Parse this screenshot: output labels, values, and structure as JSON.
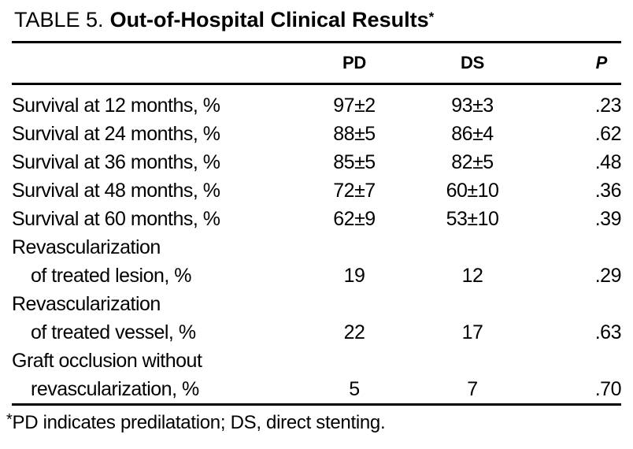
{
  "header": {
    "label": "TABLE 5.",
    "title": "Out-of-Hospital Clinical Results",
    "marker": "*"
  },
  "table": {
    "columns": {
      "label": "",
      "pd": "PD",
      "ds": "DS",
      "p": "P"
    },
    "rows": [
      {
        "label": "Survival at 12 months, %",
        "pd": "97±2",
        "ds": "93±3",
        "p": ".23"
      },
      {
        "label": "Survival at 24 months, %",
        "pd": "88±5",
        "ds": "86±4",
        "p": ".62"
      },
      {
        "label": "Survival at 36 months, %",
        "pd": "85±5",
        "ds": "82±5",
        "p": ".48"
      },
      {
        "label": "Survival at 48 months, %",
        "pd": "72±7",
        "ds": "60±10",
        "p": ".36"
      },
      {
        "label": "Survival at 60 months, %",
        "pd": "62±9",
        "ds": "53±10",
        "p": ".39"
      },
      {
        "label": "Revascularization",
        "pd": "",
        "ds": "",
        "p": ""
      },
      {
        "label": "of treated lesion, %",
        "pd": "19",
        "ds": "12",
        "p": ".29"
      },
      {
        "label": "Revascularization",
        "pd": "",
        "ds": "",
        "p": ""
      },
      {
        "label": "of treated vessel, %",
        "pd": "22",
        "ds": "17",
        "p": ".63"
      },
      {
        "label": "Graft occlusion without",
        "pd": "",
        "ds": "",
        "p": ""
      },
      {
        "label": "revascularization, %",
        "pd": "5",
        "ds": "7",
        "p": ".70"
      }
    ]
  },
  "footnote": {
    "marker": "*",
    "text": "PD indicates predilatation; DS, direct stenting."
  },
  "colors": {
    "text": "#000000",
    "background": "#ffffff",
    "rule": "#000000"
  }
}
